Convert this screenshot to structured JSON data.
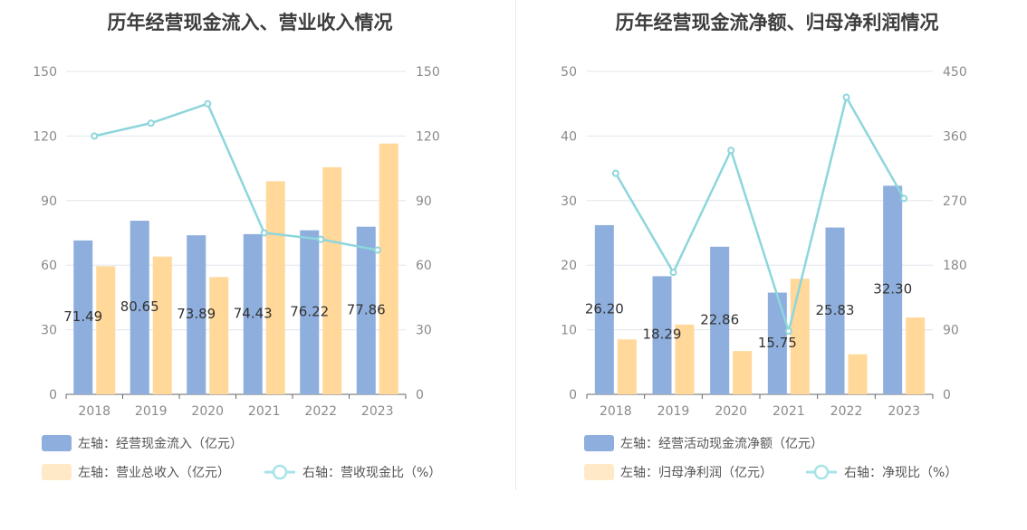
{
  "chart_data": [
    {
      "type": "bar",
      "title": "历年经营现金流入、营业收入情况",
      "categories": [
        "2018",
        "2019",
        "2020",
        "2021",
        "2022",
        "2023"
      ],
      "left_axis": {
        "min": 0,
        "max": 150,
        "ticks": [
          "0",
          "30",
          "60",
          "90",
          "120",
          "150"
        ]
      },
      "right_axis": {
        "min": 0,
        "max": 150,
        "ticks": [
          "0",
          "30",
          "60",
          "90",
          "120",
          "150"
        ]
      },
      "series": [
        {
          "name": "左轴：经营现金流入（亿元）",
          "kind": "bar",
          "axis": "left",
          "color": "#8eaedd",
          "values": [
            71.49,
            80.65,
            73.89,
            74.43,
            76.22,
            77.86
          ],
          "labels": [
            "71.49",
            "80.65",
            "73.89",
            "74.43",
            "76.22",
            "77.86"
          ]
        },
        {
          "name": "左轴：营业总收入（亿元）",
          "kind": "bar",
          "axis": "left",
          "color": "#ffd89a",
          "values": [
            59.5,
            64,
            54.5,
            99,
            105.5,
            116.5
          ]
        },
        {
          "name": "右轴：营收现金比（%）",
          "kind": "line",
          "axis": "right",
          "color": "#8dd6dc",
          "values": [
            120,
            126,
            135,
            75,
            72,
            67
          ]
        }
      ]
    },
    {
      "type": "bar",
      "title": "历年经营现金流净额、归母净利润情况",
      "categories": [
        "2018",
        "2019",
        "2020",
        "2021",
        "2022",
        "2023"
      ],
      "left_axis": {
        "min": 0,
        "max": 50,
        "ticks": [
          "0",
          "10",
          "20",
          "30",
          "40",
          "50"
        ]
      },
      "right_axis": {
        "min": 0,
        "max": 450,
        "ticks": [
          "0",
          "90",
          "180",
          "270",
          "360",
          "450"
        ]
      },
      "series": [
        {
          "name": "左轴：经营活动现金流净额（亿元）",
          "kind": "bar",
          "axis": "left",
          "color": "#8eaedd",
          "values": [
            26.2,
            18.29,
            22.86,
            15.75,
            25.83,
            32.3
          ],
          "labels": [
            "26.20",
            "18.29",
            "22.86",
            "15.75",
            "25.83",
            "32.30"
          ]
        },
        {
          "name": "左轴：归母净利润（亿元）",
          "kind": "bar",
          "axis": "left",
          "color": "#ffd89a",
          "values": [
            8.5,
            10.8,
            6.7,
            17.9,
            6.2,
            11.9
          ]
        },
        {
          "name": "右轴：净现比（%）",
          "kind": "line",
          "axis": "right",
          "color": "#8dd6dc",
          "values": [
            308,
            170,
            340,
            88,
            414,
            273
          ]
        }
      ]
    }
  ]
}
